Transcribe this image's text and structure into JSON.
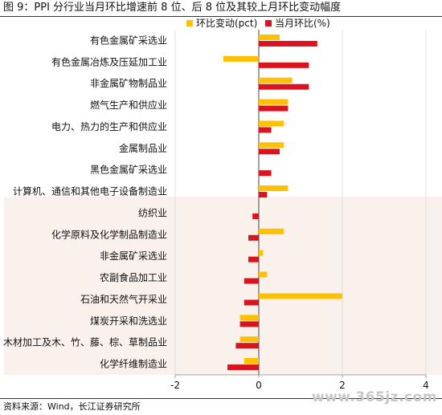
{
  "title": "图 9：PPI 分行业当月环比增速前 8 位、后 8 位及其较上月环比变动幅度",
  "source": "资料来源：Wind，长江证券研究所",
  "watermark": "www.365jz.com",
  "colors": {
    "bar_change": "#FFC000",
    "bar_mom": "#D9141E",
    "shade": "#FBF1EC"
  },
  "chart_data": {
    "type": "bar",
    "orientation": "horizontal",
    "categories": [
      "有色金属矿采选业",
      "有色金属冶炼及压延加工业",
      "非金属矿物制品业",
      "燃气生产和供应业",
      "电力、热力的生产和供应业",
      "金属制品业",
      "黑色金属矿采选业",
      "计算机、通信和其他电子设备制造业",
      "纺织业",
      "化学原料及化学制品制造业",
      "非金属矿采选业",
      "农副食品加工业",
      "石油和天然气开采业",
      "煤炭开采和洗选业",
      "木材加工及木、竹、藤、棕、草制品业",
      "化学纤维制造业"
    ],
    "series": [
      {
        "name": "环比变动(pct)",
        "values": [
          0.5,
          -0.85,
          0.8,
          0.7,
          0.6,
          0.6,
          0.0,
          0.7,
          0.0,
          0.6,
          0.1,
          0.2,
          2.0,
          -0.45,
          -0.45,
          -0.35
        ]
      },
      {
        "name": "当月环比(%)",
        "values": [
          1.4,
          1.2,
          1.2,
          0.7,
          0.3,
          0.5,
          0.3,
          0.2,
          -0.15,
          -0.25,
          -0.25,
          -0.35,
          -0.35,
          -0.45,
          -0.55,
          -0.75
        ]
      }
    ],
    "xlim": [
      -2,
      4
    ],
    "xticks": [
      -2,
      0,
      2,
      4
    ],
    "legend": "top-right"
  }
}
